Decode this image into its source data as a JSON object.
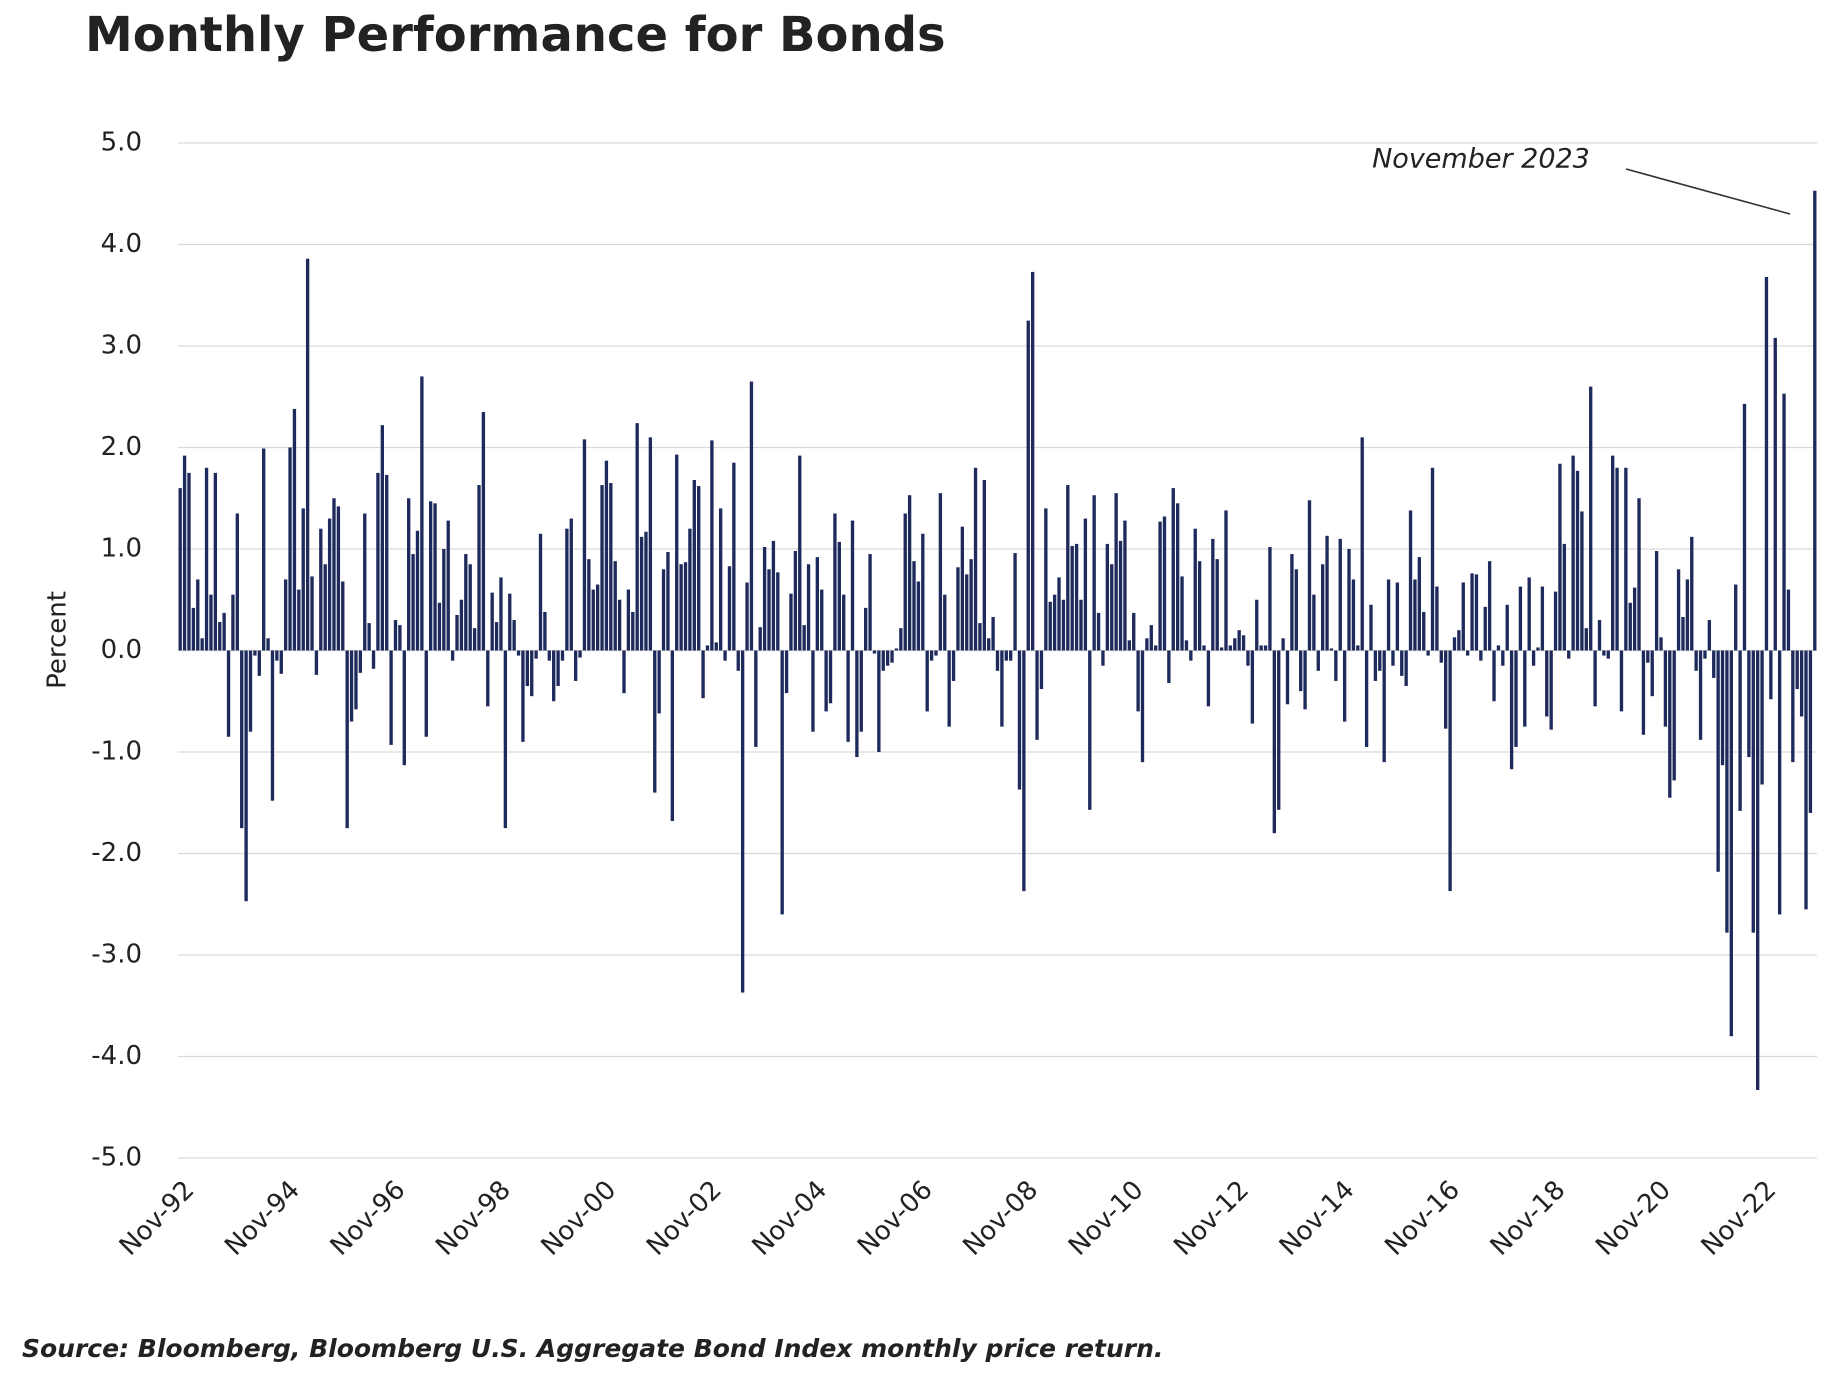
{
  "chart_data": {
    "type": "bar",
    "title": "Monthly Performance for Bonds",
    "y_label": "Percent",
    "annotation": "November 2023",
    "source": "Source: Bloomberg, Bloomberg U.S. Aggregate Bond Index monthly price return.",
    "color": "#1f2a5c",
    "grid": true,
    "ylim": [
      -5,
      5
    ],
    "yticks": [
      {
        "value": 5,
        "label": "5.0"
      },
      {
        "value": 4,
        "label": "4.0"
      },
      {
        "value": 3,
        "label": "3.0"
      },
      {
        "value": 2,
        "label": "2.0"
      },
      {
        "value": 1,
        "label": "1.0"
      },
      {
        "value": 0,
        "label": "0.0"
      },
      {
        "value": -1,
        "label": "-1.0"
      },
      {
        "value": -2,
        "label": "-2.0"
      },
      {
        "value": -3,
        "label": "-3.0"
      },
      {
        "value": -4,
        "label": "-4.0"
      },
      {
        "value": -5,
        "label": "-5.0"
      }
    ],
    "categories": [
      "Nov-92",
      null,
      null,
      null,
      null,
      null,
      null,
      null,
      null,
      null,
      null,
      null,
      null,
      null,
      null,
      null,
      null,
      null,
      null,
      null,
      null,
      null,
      null,
      null,
      "Nov-94",
      null,
      null,
      null,
      null,
      null,
      null,
      null,
      null,
      null,
      null,
      null,
      null,
      null,
      null,
      null,
      null,
      null,
      null,
      null,
      null,
      null,
      null,
      null,
      "Nov-96",
      null,
      null,
      null,
      null,
      null,
      null,
      null,
      null,
      null,
      null,
      null,
      null,
      null,
      null,
      null,
      null,
      null,
      null,
      null,
      null,
      null,
      null,
      null,
      "Nov-98",
      null,
      null,
      null,
      null,
      null,
      null,
      null,
      null,
      null,
      null,
      null,
      null,
      null,
      null,
      null,
      null,
      null,
      null,
      null,
      null,
      null,
      null,
      null,
      "Nov-00",
      null,
      null,
      null,
      null,
      null,
      null,
      null,
      null,
      null,
      null,
      null,
      null,
      null,
      null,
      null,
      null,
      null,
      null,
      null,
      null,
      null,
      null,
      null,
      "Nov-02",
      null,
      null,
      null,
      null,
      null,
      null,
      null,
      null,
      null,
      null,
      null,
      null,
      null,
      null,
      null,
      null,
      null,
      null,
      null,
      null,
      null,
      null,
      null,
      "Nov-04",
      null,
      null,
      null,
      null,
      null,
      null,
      null,
      null,
      null,
      null,
      null,
      null,
      null,
      null,
      null,
      null,
      null,
      null,
      null,
      null,
      null,
      null,
      null,
      "Nov-06",
      null,
      null,
      null,
      null,
      null,
      null,
      null,
      null,
      null,
      null,
      null,
      null,
      null,
      null,
      null,
      null,
      null,
      null,
      null,
      null,
      null,
      null,
      null,
      "Nov-08",
      null,
      null,
      null,
      null,
      null,
      null,
      null,
      null,
      null,
      null,
      null,
      null,
      null,
      null,
      null,
      null,
      null,
      null,
      null,
      null,
      null,
      null,
      null,
      "Nov-10",
      null,
      null,
      null,
      null,
      null,
      null,
      null,
      null,
      null,
      null,
      null,
      null,
      null,
      null,
      null,
      null,
      null,
      null,
      null,
      null,
      null,
      null,
      null,
      "Nov-12",
      null,
      null,
      null,
      null,
      null,
      null,
      null,
      null,
      null,
      null,
      null,
      null,
      null,
      null,
      null,
      null,
      null,
      null,
      null,
      null,
      null,
      null,
      null,
      "Nov-14",
      null,
      null,
      null,
      null,
      null,
      null,
      null,
      null,
      null,
      null,
      null,
      null,
      null,
      null,
      null,
      null,
      null,
      null,
      null,
      null,
      null,
      null,
      null,
      "Nov-16",
      null,
      null,
      null,
      null,
      null,
      null,
      null,
      null,
      null,
      null,
      null,
      null,
      null,
      null,
      null,
      null,
      null,
      null,
      null,
      null,
      null,
      null,
      null,
      "Nov-18",
      null,
      null,
      null,
      null,
      null,
      null,
      null,
      null,
      null,
      null,
      null,
      null,
      null,
      null,
      null,
      null,
      null,
      null,
      null,
      null,
      null,
      null,
      null,
      "Nov-20",
      null,
      null,
      null,
      null,
      null,
      null,
      null,
      null,
      null,
      null,
      null,
      null,
      null,
      null,
      null,
      null,
      null,
      null,
      null,
      null,
      null,
      null,
      null,
      "Nov-22",
      null,
      null,
      null,
      null,
      null,
      null,
      null,
      null,
      null,
      null,
      null,
      null
    ],
    "values": [
      1.6,
      1.92,
      1.75,
      0.42,
      0.7,
      0.12,
      1.8,
      0.55,
      1.75,
      0.28,
      0.37,
      -0.85,
      0.55,
      1.35,
      -1.75,
      -2.47,
      -0.8,
      -0.05,
      -0.25,
      1.99,
      0.12,
      -1.48,
      -0.1,
      -0.23,
      0.7,
      2.0,
      2.38,
      0.6,
      1.4,
      3.86,
      0.73,
      -0.24,
      1.2,
      0.85,
      1.3,
      1.5,
      1.42,
      0.68,
      -1.75,
      -0.7,
      -0.58,
      -0.22,
      1.35,
      0.27,
      -0.18,
      1.75,
      2.22,
      1.73,
      -0.93,
      0.3,
      0.25,
      -1.13,
      1.5,
      0.95,
      1.18,
      2.7,
      -0.85,
      1.47,
      1.45,
      0.47,
      1.0,
      1.28,
      -0.1,
      0.35,
      0.5,
      0.95,
      0.85,
      0.22,
      1.63,
      2.35,
      -0.55,
      0.57,
      0.28,
      0.72,
      -1.75,
      0.56,
      0.3,
      -0.05,
      -0.9,
      -0.35,
      -0.45,
      -0.08,
      1.15,
      0.38,
      -0.1,
      -0.5,
      -0.35,
      -0.1,
      1.2,
      1.3,
      -0.3,
      -0.07,
      2.08,
      0.9,
      0.6,
      0.65,
      1.63,
      1.87,
      1.65,
      0.88,
      0.5,
      -0.42,
      0.6,
      0.38,
      2.24,
      1.12,
      1.17,
      2.1,
      -1.4,
      -0.62,
      0.8,
      0.97,
      -1.68,
      1.93,
      0.85,
      0.87,
      1.2,
      1.68,
      1.62,
      -0.47,
      0.05,
      2.07,
      0.08,
      1.4,
      -0.1,
      0.83,
      1.85,
      -0.2,
      -3.37,
      0.67,
      2.65,
      -0.95,
      0.23,
      1.02,
      0.8,
      1.08,
      0.77,
      -2.6,
      -0.42,
      0.56,
      0.98,
      1.92,
      0.25,
      0.85,
      -0.8,
      0.92,
      0.6,
      -0.6,
      -0.52,
      1.35,
      1.07,
      0.55,
      -0.9,
      1.28,
      -1.05,
      -0.8,
      0.42,
      0.95,
      -0.03,
      -1.0,
      -0.2,
      -0.15,
      -0.12,
      0.02,
      0.22,
      1.35,
      1.53,
      0.88,
      0.68,
      1.15,
      -0.6,
      -0.1,
      -0.05,
      1.55,
      0.55,
      -0.75,
      -0.3,
      0.82,
      1.22,
      0.75,
      0.9,
      1.8,
      0.27,
      1.68,
      0.12,
      0.33,
      -0.2,
      -0.75,
      -0.1,
      -0.1,
      0.96,
      -1.37,
      -2.37,
      3.25,
      3.73,
      -0.88,
      -0.38,
      1.4,
      0.48,
      0.55,
      0.72,
      0.5,
      1.63,
      1.03,
      1.05,
      0.5,
      1.3,
      -1.57,
      1.53,
      0.37,
      -0.15,
      1.05,
      0.85,
      1.55,
      1.08,
      1.28,
      0.1,
      0.37,
      -0.6,
      -1.1,
      0.12,
      0.25,
      0.05,
      1.27,
      1.32,
      -0.32,
      1.6,
      1.45,
      0.73,
      0.1,
      -0.1,
      1.2,
      0.88,
      0.05,
      -0.55,
      1.1,
      0.9,
      0.03,
      1.38,
      0.05,
      0.12,
      0.2,
      0.15,
      -0.15,
      -0.72,
      0.5,
      0.05,
      0.05,
      1.02,
      -1.8,
      -1.57,
      0.12,
      -0.53,
      0.95,
      0.8,
      -0.4,
      -0.58,
      1.48,
      0.55,
      -0.2,
      0.85,
      1.13,
      0.02,
      -0.3,
      1.1,
      -0.7,
      1.0,
      0.7,
      0.05,
      2.1,
      -0.95,
      0.45,
      -0.3,
      -0.2,
      -1.1,
      0.7,
      -0.15,
      0.67,
      -0.25,
      -0.35,
      1.38,
      0.7,
      0.92,
      0.38,
      -0.05,
      1.8,
      0.63,
      -0.12,
      -0.77,
      -2.37,
      0.13,
      0.2,
      0.67,
      -0.05,
      0.76,
      0.75,
      -0.1,
      0.43,
      0.88,
      -0.5,
      0.05,
      -0.15,
      0.45,
      -1.17,
      -0.95,
      0.63,
      -0.75,
      0.72,
      -0.15,
      0.03,
      0.63,
      -0.65,
      -0.78,
      0.58,
      1.84,
      1.05,
      -0.08,
      1.92,
      1.77,
      1.37,
      0.22,
      2.6,
      -0.55,
      0.3,
      -0.05,
      -0.08,
      1.92,
      1.8,
      -0.6,
      1.8,
      0.47,
      0.62,
      1.5,
      -0.83,
      -0.12,
      -0.45,
      0.98,
      0.13,
      -0.75,
      -1.45,
      -1.28,
      0.8,
      0.33,
      0.7,
      1.12,
      -0.2,
      -0.88,
      -0.08,
      0.3,
      -0.27,
      -2.18,
      -1.13,
      -2.78,
      -3.8,
      0.65,
      -1.58,
      2.43,
      -1.05,
      -2.78,
      -4.33,
      -1.32,
      3.68,
      -0.48,
      3.08,
      -2.6,
      2.53,
      0.6,
      -1.1,
      -0.38,
      -0.65,
      -2.55,
      -1.6,
      4.53
    ]
  }
}
